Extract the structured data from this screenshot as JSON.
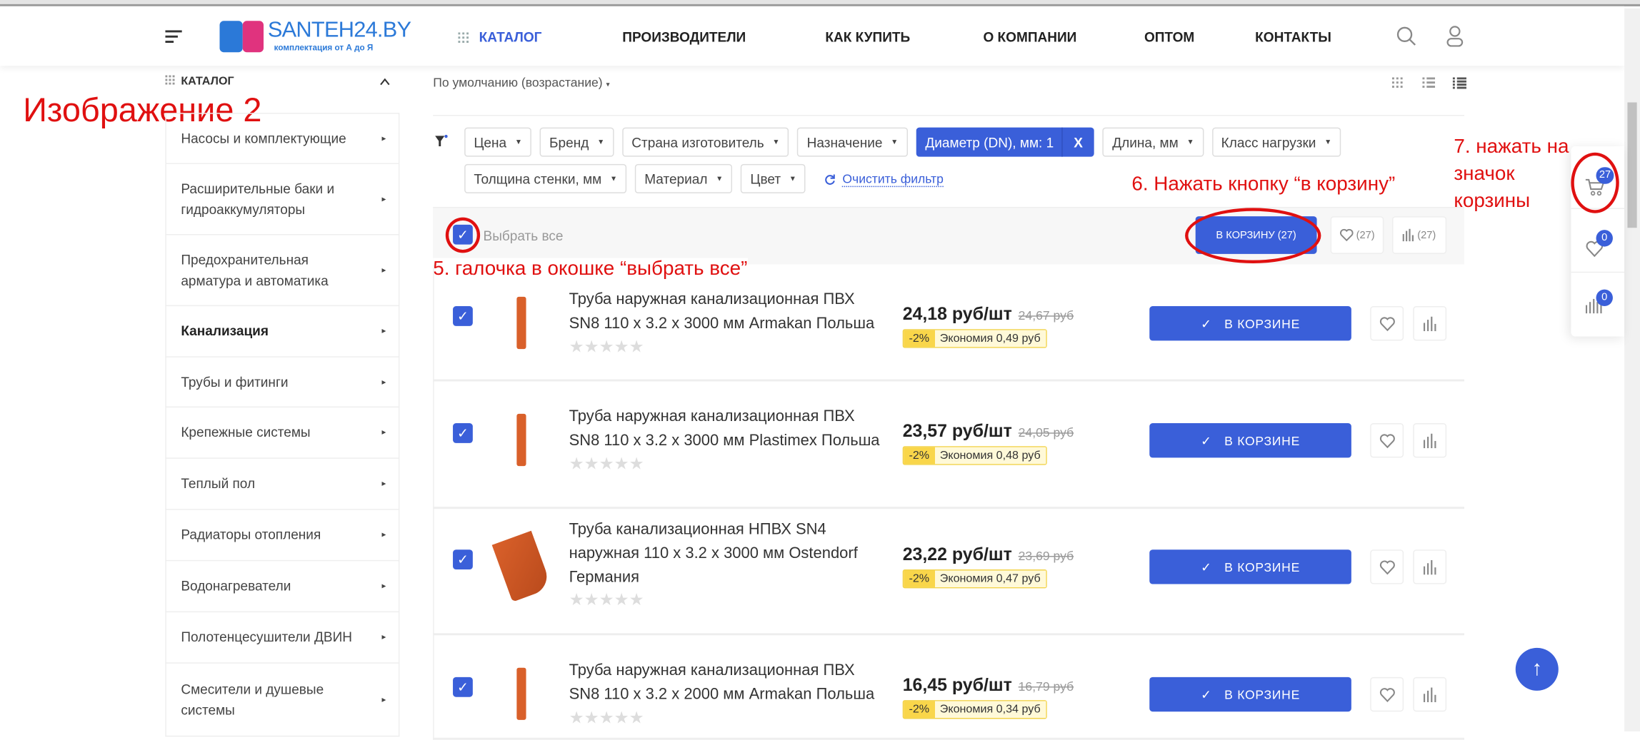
{
  "header": {
    "logo_text": "SANTEH24.BY",
    "logo_sub": "комплектация от А до Я",
    "nav": [
      "КАТАЛОГ",
      "ПРОИЗВОДИТЕЛИ",
      "КАК КУПИТЬ",
      "О КОМПАНИИ",
      "ОПТОМ",
      "КОНТАКТЫ"
    ]
  },
  "sidebar": {
    "title": "КАТАЛОГ",
    "items": [
      "Насосы и комплектующие",
      "Расширительные баки и гидроаккумуляторы",
      "Предохранительная арматура и автоматика",
      "Канализация",
      "Трубы и фитинги",
      "Крепежные системы",
      "Теплый пол",
      "Радиаторы отопления",
      "Водонагреватели",
      "Полотенцесушители ДВИН",
      "Смесители и душевые системы"
    ]
  },
  "annotations": {
    "image_label": "Изображение 2",
    "step5": "5. галочка в окошке “выбрать все”",
    "step6": "6. Нажать кнопку “в корзину”",
    "step7_1": "7. нажать на",
    "step7_2": "значок",
    "step7_3": "корзины"
  },
  "sort": {
    "label": "По умолчанию (возрастание)"
  },
  "filters": {
    "row1": [
      "Цена",
      "Бренд",
      "Страна изготовитель",
      "Назначение"
    ],
    "active": "Диаметр (DN), мм: 1",
    "active_close": "X",
    "row1b": [
      "Длина, мм",
      "Класс нагрузки"
    ],
    "row2": [
      "Толщина стенки, мм",
      "Материал",
      "Цвет"
    ],
    "clear": "Очистить фильтр"
  },
  "bulk": {
    "select_all": "Выбрать все",
    "select_all_checked": true,
    "to_cart": "В КОРЗИНУ (27)",
    "fav_count": "(27)",
    "compare_count": "(27)"
  },
  "products": [
    {
      "title": "Труба наружная канализационная ПВХ SN8 110 x 3.2 x 3000 мм Armakan Польша",
      "price": "24,18 руб/шт",
      "old": "24,67 руб",
      "disc": "-2%",
      "save": "Экономия 0,49 руб",
      "btn": "В КОРЗИНЕ",
      "checked": true,
      "rating": 0
    },
    {
      "title": "Труба наружная канализационная ПВХ SN8 110 x 3.2 x 3000 мм Plastimex Польша",
      "price": "23,57 руб/шт",
      "old": "24,05 руб",
      "disc": "-2%",
      "save": "Экономия 0,48 руб",
      "btn": "В КОРЗИНЕ",
      "checked": true,
      "rating": 0
    },
    {
      "title": "Труба канализационная НПВХ SN4 наружная 110 x 3.2 x 3000 мм Ostendorf Германия",
      "price": "23,22 руб/шт",
      "old": "23,69 руб",
      "disc": "-2%",
      "save": "Экономия 0,47 руб",
      "btn": "В КОРЗИНЕ",
      "checked": true,
      "rating": 0
    },
    {
      "title": "Труба наружная канализационная ПВХ SN8 110 x 3.2 x 2000 мм Armakan Польша",
      "price": "16,45 руб/шт",
      "old": "16,79 руб",
      "disc": "-2%",
      "save": "Экономия 0,34 руб",
      "btn": "В КОРЗИНЕ",
      "checked": true,
      "rating": 0
    }
  ],
  "float_panel": {
    "cart_count": "27",
    "fav_count": "0",
    "compare_count": "0"
  },
  "colors": {
    "accent": "#3a5fd9",
    "annotation": "#e01010",
    "discount": "#f9d64a"
  }
}
